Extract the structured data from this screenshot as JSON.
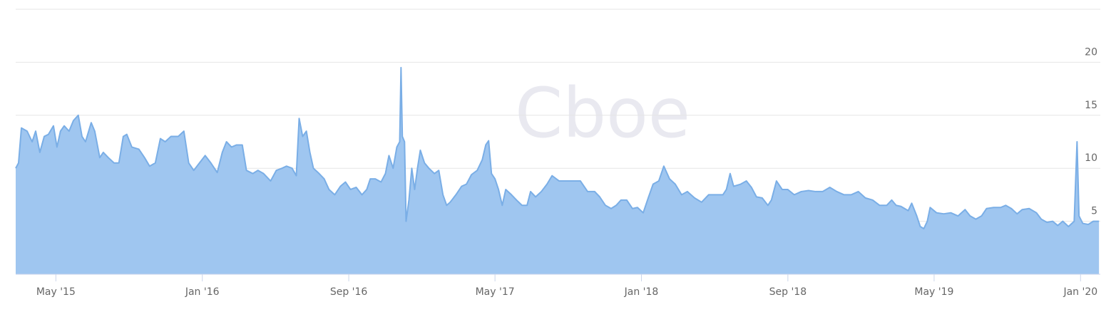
{
  "chart_data": {
    "type": "area",
    "watermark": "Cboe",
    "color": "#7aaee6",
    "fill": "#9fc6f0",
    "grid": true,
    "xlim": [
      2015.15,
      2020.09
    ],
    "ylim": [
      0,
      25
    ],
    "yticks": [
      0,
      5,
      10,
      15,
      20
    ],
    "xticks": [
      {
        "value": 2015.333,
        "label": "May '15"
      },
      {
        "value": 2016,
        "label": "Jan '16"
      },
      {
        "value": 2016.667,
        "label": "Sep '16"
      },
      {
        "value": 2017.333,
        "label": "May '17"
      },
      {
        "value": 2018,
        "label": "Jan '18"
      },
      {
        "value": 2018.667,
        "label": "Sep '18"
      },
      {
        "value": 2019.333,
        "label": "May '19"
      },
      {
        "value": 2020,
        "label": "Jan '20"
      }
    ],
    "x": [
      2015.15,
      2015.163,
      2015.176,
      2015.202,
      2015.225,
      2015.241,
      2015.26,
      2015.28,
      2015.299,
      2015.322,
      2015.338,
      2015.354,
      2015.371,
      2015.393,
      2015.413,
      2015.435,
      2015.452,
      2015.468,
      2015.494,
      2015.51,
      2015.533,
      2015.549,
      2015.572,
      2015.598,
      2015.62,
      2015.64,
      2015.656,
      2015.679,
      2015.711,
      2015.737,
      2015.76,
      2015.786,
      2015.809,
      2015.831,
      2015.857,
      2015.89,
      2015.916,
      2015.938,
      2015.961,
      2015.987,
      2016.013,
      2016.039,
      2016.068,
      2016.091,
      2016.11,
      2016.133,
      2016.156,
      2016.182,
      2016.201,
      2016.23,
      2016.253,
      2016.279,
      2016.311,
      2016.337,
      2016.363,
      2016.383,
      2016.409,
      2016.428,
      2016.441,
      2016.457,
      2016.474,
      2016.49,
      2016.506,
      2016.532,
      2016.555,
      2016.577,
      2016.603,
      2016.629,
      2016.652,
      2016.675,
      2016.701,
      2016.727,
      2016.749,
      2016.765,
      2016.788,
      2016.814,
      2016.834,
      2016.85,
      2016.869,
      2016.886,
      2016.899,
      2016.905,
      2016.911,
      2016.921,
      2016.928,
      2016.941,
      2016.954,
      2016.967,
      2016.98,
      2016.993,
      2017.012,
      2017.032,
      2017.057,
      2017.077,
      2017.096,
      2017.113,
      2017.129,
      2017.155,
      2017.181,
      2017.203,
      2017.226,
      2017.252,
      2017.275,
      2017.291,
      2017.304,
      2017.317,
      2017.333,
      2017.349,
      2017.366,
      2017.382,
      2017.408,
      2017.431,
      2017.456,
      2017.479,
      2017.495,
      2017.518,
      2017.544,
      2017.57,
      2017.593,
      2017.625,
      2017.658,
      2017.69,
      2017.722,
      2017.755,
      2017.787,
      2017.81,
      2017.836,
      2017.862,
      2017.885,
      2017.907,
      2017.933,
      2017.959,
      2017.982,
      2018.008,
      2018.031,
      2018.053,
      2018.079,
      2018.102,
      2018.128,
      2018.154,
      2018.183,
      2018.209,
      2018.242,
      2018.274,
      2018.306,
      2018.339,
      2018.371,
      2018.387,
      2018.404,
      2018.42,
      2018.452,
      2018.478,
      2018.501,
      2018.524,
      2018.55,
      2018.576,
      2018.592,
      2018.615,
      2018.641,
      2018.666,
      2018.696,
      2018.728,
      2018.761,
      2018.793,
      2018.825,
      2018.858,
      2018.89,
      2018.923,
      2018.955,
      2018.988,
      2019.02,
      2019.053,
      2019.085,
      2019.117,
      2019.14,
      2019.16,
      2019.182,
      2019.215,
      2019.231,
      2019.254,
      2019.27,
      2019.286,
      2019.302,
      2019.315,
      2019.344,
      2019.377,
      2019.409,
      2019.442,
      2019.474,
      2019.497,
      2019.523,
      2019.549,
      2019.572,
      2019.604,
      2019.636,
      2019.659,
      2019.685,
      2019.711,
      2019.734,
      2019.766,
      2019.799,
      2019.821,
      2019.847,
      2019.873,
      2019.896,
      2019.919,
      2019.945,
      2019.971,
      2019.984,
      2019.993,
      2020.01,
      2020.035,
      2020.058,
      2020.084
    ],
    "values": [
      10,
      10.5,
      13.8,
      13.5,
      12.5,
      13.5,
      11.5,
      13,
      13.2,
      14,
      12,
      13.5,
      14,
      13.5,
      14.5,
      15,
      13,
      12.5,
      14.3,
      13.5,
      11,
      11.5,
      11,
      10.5,
      10.5,
      13,
      13.2,
      12,
      11.8,
      11,
      10.2,
      10.5,
      12.8,
      12.5,
      13,
      13,
      13.5,
      10.5,
      9.8,
      10.5,
      11.2,
      10.5,
      9.6,
      11.5,
      12.5,
      12,
      12.2,
      12.2,
      9.8,
      9.5,
      9.8,
      9.5,
      8.8,
      9.8,
      10,
      10.2,
      10,
      9.3,
      14.7,
      13,
      13.5,
      11.5,
      10,
      9.5,
      9,
      8,
      7.5,
      8.3,
      8.7,
      8,
      8.2,
      7.5,
      8,
      9,
      9,
      8.7,
      9.5,
      11.2,
      10,
      12,
      12.5,
      19.5,
      13,
      12.5,
      5,
      7,
      10,
      8,
      10,
      11.7,
      10.5,
      10,
      9.5,
      9.8,
      7.5,
      6.5,
      6.8,
      7.5,
      8.3,
      8.5,
      9.4,
      9.8,
      10.8,
      12.2,
      12.6,
      9.5,
      9,
      8,
      6.5,
      8,
      7.5,
      7,
      6.5,
      6.5,
      7.8,
      7.3,
      7.8,
      8.5,
      9.3,
      8.8,
      8.8,
      8.8,
      8.8,
      7.8,
      7.8,
      7.3,
      6.5,
      6.2,
      6.5,
      7,
      7,
      6.2,
      6.3,
      5.8,
      7.2,
      8.5,
      8.8,
      10.2,
      9,
      8.5,
      7.5,
      7.8,
      7.2,
      6.8,
      7.5,
      7.5,
      7.5,
      8,
      9.5,
      8.3,
      8.5,
      8.8,
      8.2,
      7.3,
      7.2,
      6.5,
      7,
      8.8,
      8,
      8,
      7.5,
      7.8,
      7.9,
      7.8,
      7.8,
      8.2,
      7.8,
      7.5,
      7.5,
      7.8,
      7.2,
      7,
      6.5,
      6.5,
      7,
      6.5,
      6.4,
      6,
      6.7,
      5.5,
      4.5,
      4.3,
      5,
      6.3,
      5.8,
      5.7,
      5.8,
      5.5,
      6.1,
      5.5,
      5.2,
      5.5,
      6.2,
      6.3,
      6.3,
      6.5,
      6.2,
      5.7,
      6.1,
      6.2,
      5.8,
      5.2,
      4.9,
      5,
      4.6,
      5,
      4.5,
      5,
      12.5,
      5.5,
      4.8,
      4.7,
      5,
      5
    ]
  }
}
